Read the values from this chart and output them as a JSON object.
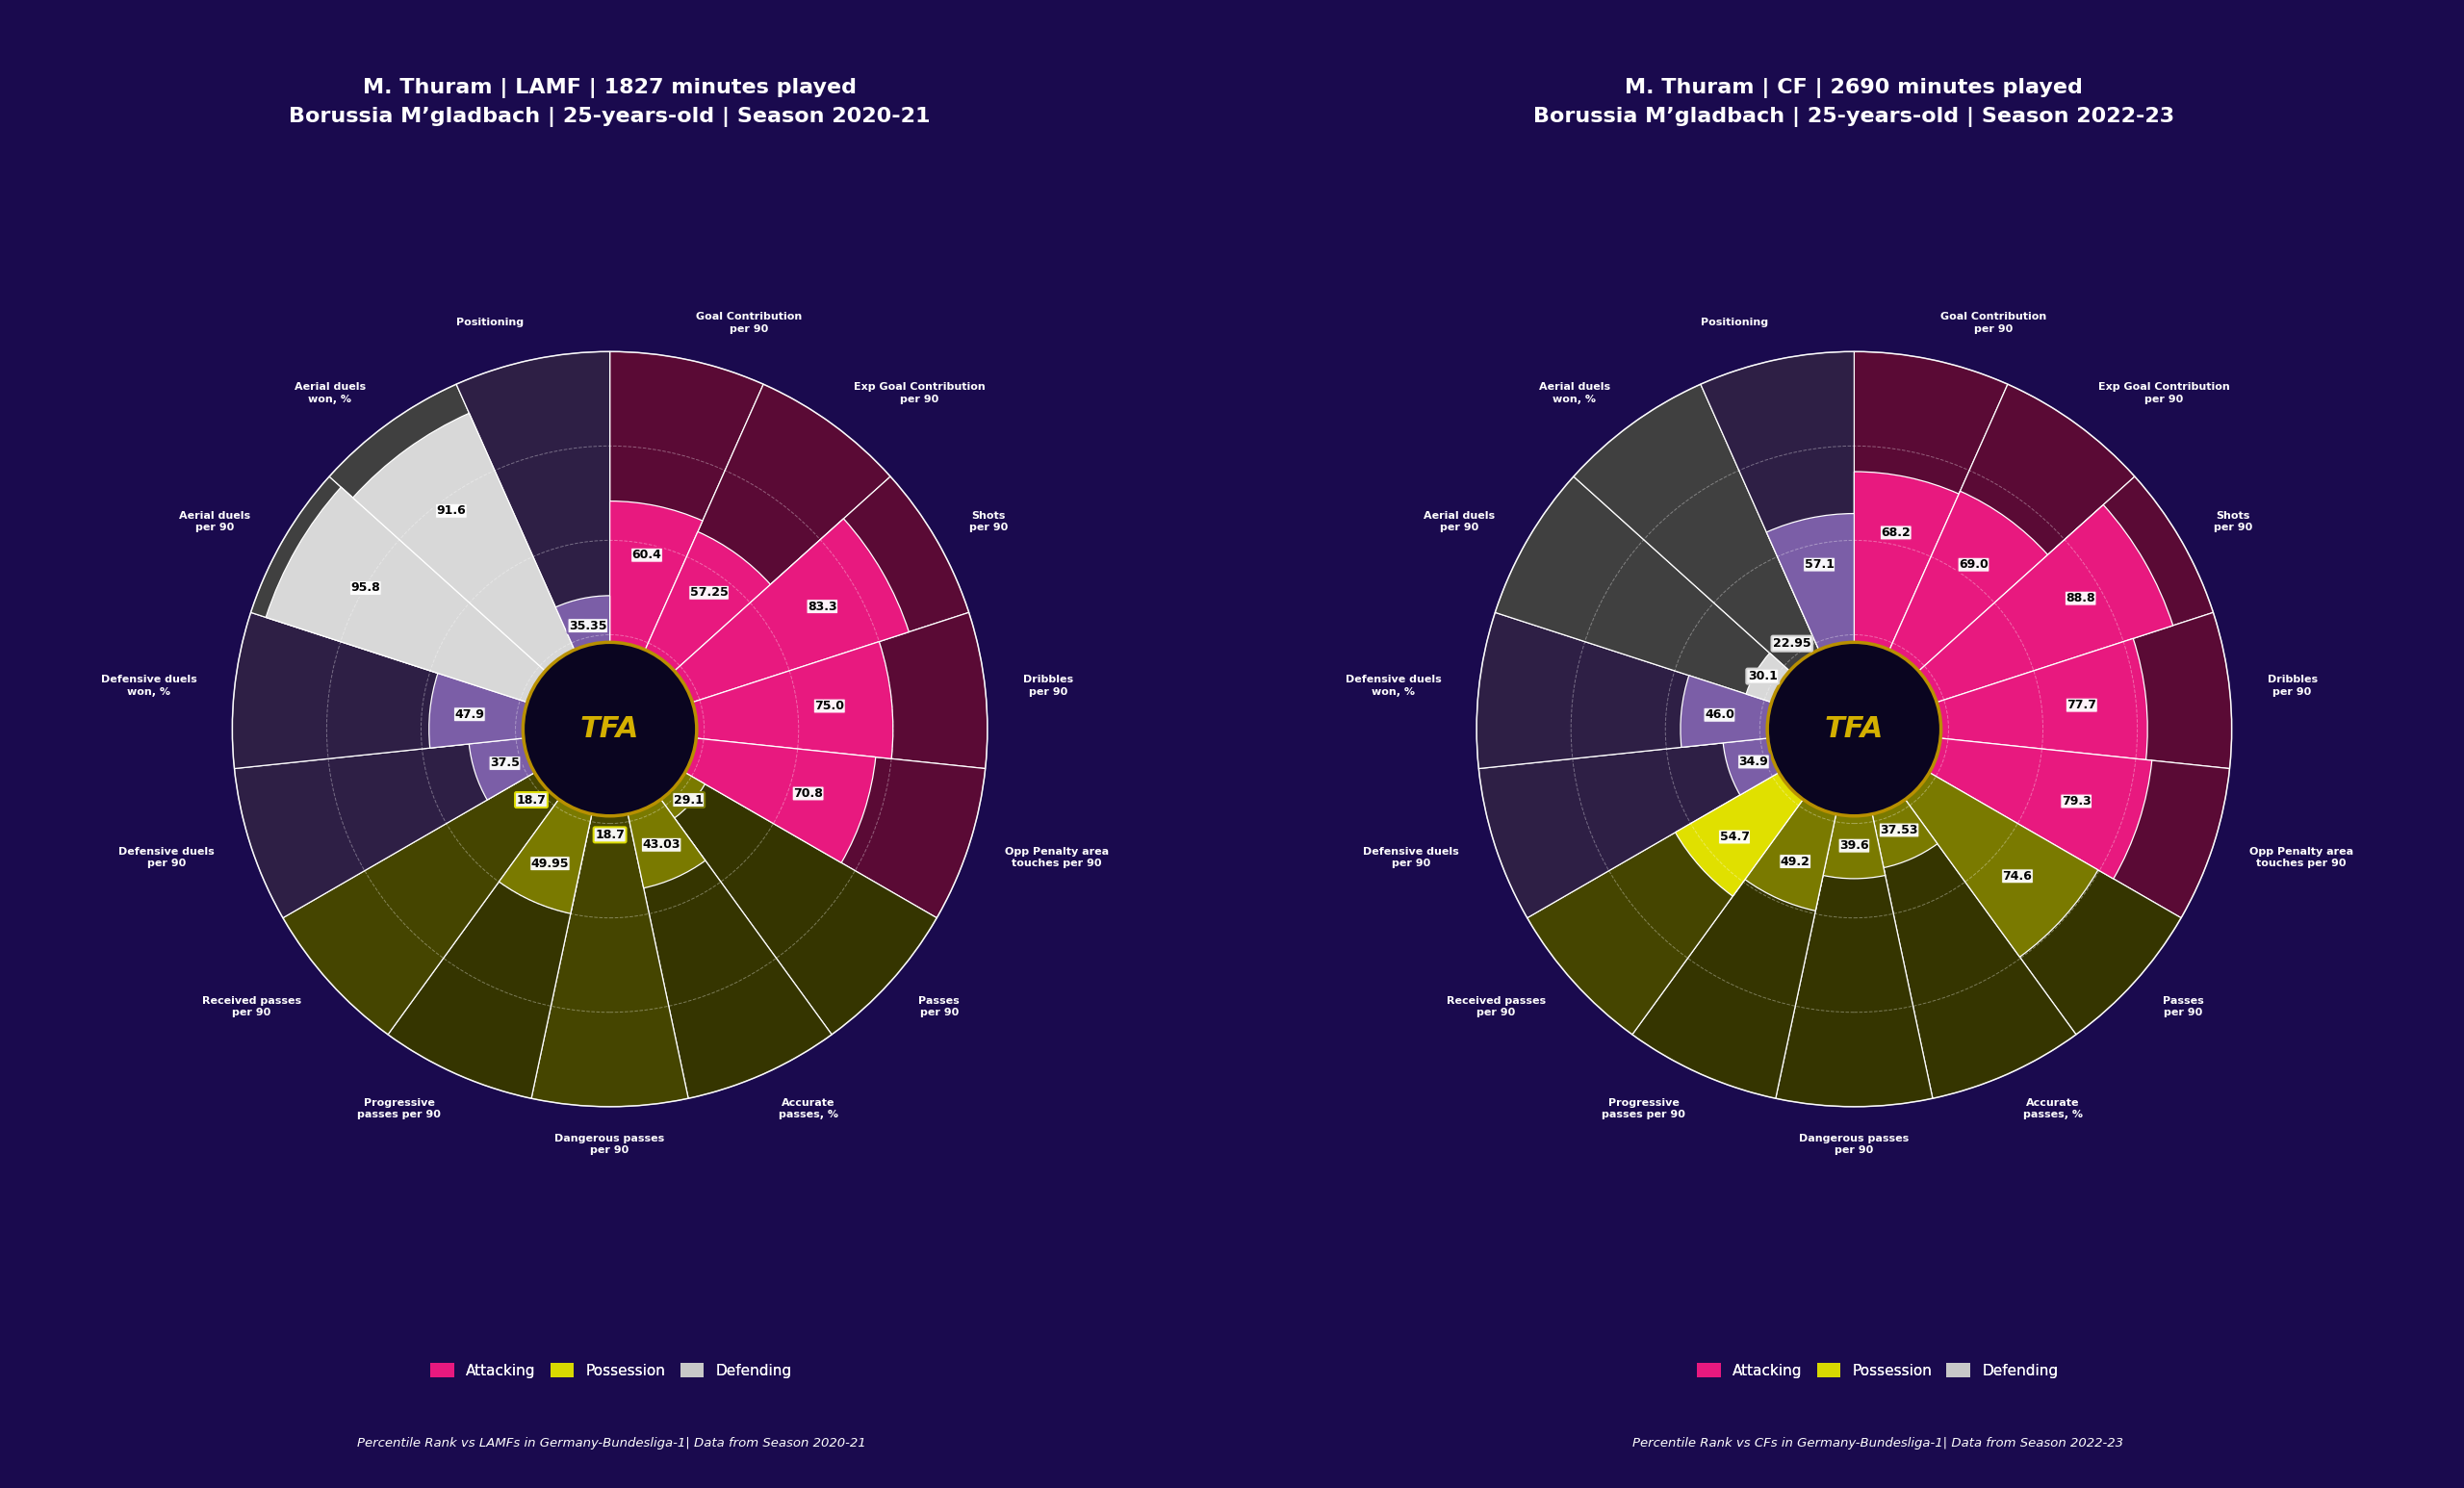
{
  "background_color": "#1a0a4e",
  "charts": [
    {
      "title_line1": "M. Thuram | LAMF | 1827 minutes played",
      "title_line2": "Borussia M’gladbach | 25-years-old | Season 2020-21",
      "footnote": "Percentile Rank vs LAMFs in Germany-Bundesliga-1| Data from Season 2020-21",
      "categories": [
        "Goal Contribution\nper 90",
        "Exp Goal Contribution\nper 90",
        "Shots\nper 90",
        "Dribbles\nper 90",
        "Opp Penalty area\ntouches per 90",
        "Passes\nper 90",
        "Accurate\npasses, %",
        "Dangerous passes\nper 90",
        "Progressive\npasses per 90",
        "Received passes\nper 90",
        "Defensive duels\nper 90",
        "Defensive duels\nwon, %",
        "Aerial duels\nper 90",
        "Aerial duels\nwon, %",
        "Positioning"
      ],
      "values": [
        60.4,
        57.25,
        83.3,
        75.0,
        70.8,
        29.1,
        43.03,
        18.7,
        49.95,
        18.7,
        37.5,
        47.9,
        95.8,
        91.6,
        35.35
      ],
      "slice_colors": [
        "#e8197f",
        "#e8197f",
        "#e8197f",
        "#e8197f",
        "#e8197f",
        "#7a7a00",
        "#7a7a00",
        "#e0e000",
        "#7a7a00",
        "#e0e000",
        "#7b5ea7",
        "#7b5ea7",
        "#d8d8d8",
        "#d8d8d8",
        "#7b5ea7"
      ],
      "bg_slice_colors": [
        "#5a0a35",
        "#5a0a35",
        "#5a0a35",
        "#5a0a35",
        "#5a0a35",
        "#353500",
        "#353500",
        "#454500",
        "#353500",
        "#454500",
        "#2e1f45",
        "#2e1f45",
        "#404040",
        "#404040",
        "#2e1f45"
      ]
    },
    {
      "title_line1": "M. Thuram | CF | 2690 minutes played",
      "title_line2": "Borussia M’gladbach | 25-years-old | Season 2022-23",
      "footnote": "Percentile Rank vs CFs in Germany-Bundesliga-1| Data from Season 2022-23",
      "categories": [
        "Goal Contribution\nper 90",
        "Exp Goal Contribution\nper 90",
        "Shots\nper 90",
        "Dribbles\nper 90",
        "Opp Penalty area\ntouches per 90",
        "Passes\nper 90",
        "Accurate\npasses, %",
        "Dangerous passes\nper 90",
        "Progressive\npasses per 90",
        "Received passes\nper 90",
        "Defensive duels\nper 90",
        "Defensive duels\nwon, %",
        "Aerial duels\nper 90",
        "Aerial duels\nwon, %",
        "Positioning"
      ],
      "values": [
        68.2,
        69.0,
        88.8,
        77.7,
        79.3,
        74.6,
        37.53,
        39.6,
        49.2,
        54.7,
        34.9,
        46.0,
        30.1,
        22.95,
        57.1
      ],
      "slice_colors": [
        "#e8197f",
        "#e8197f",
        "#e8197f",
        "#e8197f",
        "#e8197f",
        "#7a7a00",
        "#7a7a00",
        "#7a7a00",
        "#7a7a00",
        "#e0e000",
        "#7b5ea7",
        "#7b5ea7",
        "#d8d8d8",
        "#d8d8d8",
        "#7b5ea7"
      ],
      "bg_slice_colors": [
        "#5a0a35",
        "#5a0a35",
        "#5a0a35",
        "#5a0a35",
        "#5a0a35",
        "#353500",
        "#353500",
        "#353500",
        "#353500",
        "#454500",
        "#2e1f45",
        "#2e1f45",
        "#404040",
        "#404040",
        "#2e1f45"
      ]
    }
  ],
  "legend_items": [
    {
      "label": "Attacking",
      "color": "#e8197f"
    },
    {
      "label": "Possession",
      "color": "#d8d800"
    },
    {
      "label": "Defending",
      "color": "#c8c8c8"
    }
  ],
  "center_label": "TFA",
  "center_label_color": "#d4b000",
  "center_circle_color": "#0a0520",
  "center_border_color": "#b89000",
  "grid_levels": [
    25,
    50,
    75,
    100
  ],
  "max_val": 100
}
